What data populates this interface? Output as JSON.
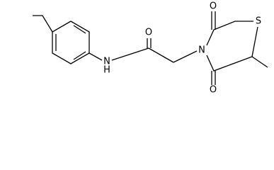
{
  "atoms": [
    {
      "label": "N"
    },
    {
      "label": "H"
    },
    {
      "label": "O"
    },
    {
      "label": "N"
    },
    {
      "label": "O"
    },
    {
      "label": "O"
    },
    {
      "label": "S"
    }
  ]
}
